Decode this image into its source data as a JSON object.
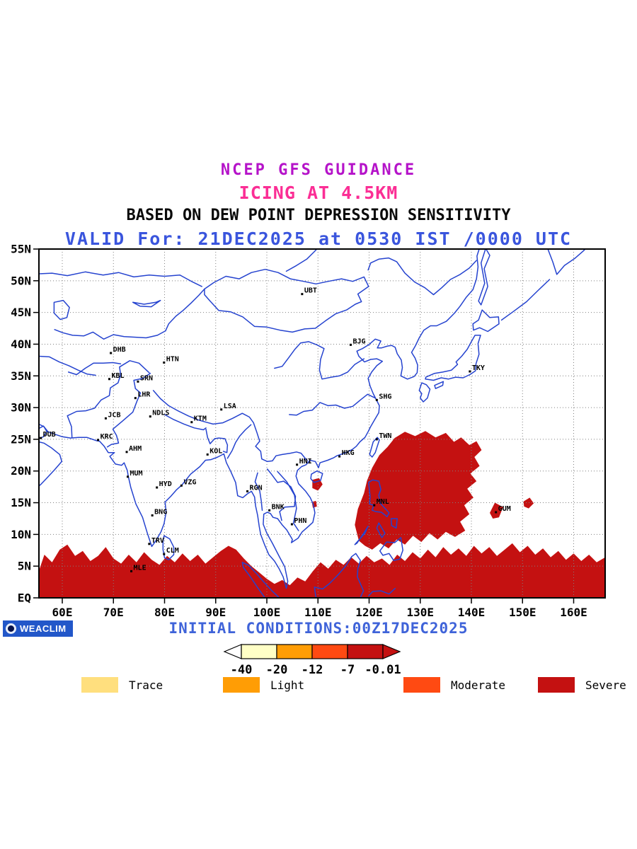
{
  "titles": {
    "line1": "NCEP GFS GUIDANCE",
    "line2": "ICING AT 4.5KM",
    "line3": "BASED ON DEW POINT DEPRESSION SENSITIVITY",
    "line4": "VALID For: 21DEC2025 at 0530 IST /0000 UTC"
  },
  "colors": {
    "title_model": "#b513c9",
    "title_product": "#fb2e95",
    "title_valid": "#3a55dd",
    "coast": "#2543cf",
    "grid": "#808080",
    "severe": "#c41111",
    "moderate": "#ff4a12",
    "light": "#ff9d05",
    "trace": "#ffdf7e",
    "initial_text": "#3f63d9",
    "logo_bg": "#2257c9"
  },
  "map": {
    "lat_labels": [
      "55N",
      "50N",
      "45N",
      "40N",
      "35N",
      "30N",
      "25N",
      "20N",
      "15N",
      "10N",
      "5N",
      "EQ"
    ],
    "lat_values": [
      55,
      50,
      45,
      40,
      35,
      30,
      25,
      20,
      15,
      10,
      5,
      0
    ],
    "lon_labels": [
      "60E",
      "70E",
      "80E",
      "90E",
      "100E",
      "110E",
      "120E",
      "130E",
      "140E",
      "150E",
      "160E"
    ],
    "lon_values": [
      60,
      70,
      80,
      90,
      100,
      110,
      120,
      130,
      140,
      150,
      160
    ],
    "stations": [
      {
        "code": "UBT",
        "lon": 106.9,
        "lat": 47.9
      },
      {
        "code": "BJG",
        "lon": 116.4,
        "lat": 39.9
      },
      {
        "code": "DHB",
        "lon": 69.5,
        "lat": 38.6
      },
      {
        "code": "HTN",
        "lon": 79.9,
        "lat": 37.1
      },
      {
        "code": "KBL",
        "lon": 69.2,
        "lat": 34.5
      },
      {
        "code": "SRN",
        "lon": 74.8,
        "lat": 34.1
      },
      {
        "code": "LHR",
        "lon": 74.3,
        "lat": 31.5
      },
      {
        "code": "SHG",
        "lon": 121.5,
        "lat": 31.2
      },
      {
        "code": "TKY",
        "lon": 139.7,
        "lat": 35.7
      },
      {
        "code": "JCB",
        "lon": 68.5,
        "lat": 28.3
      },
      {
        "code": "NDLS",
        "lon": 77.2,
        "lat": 28.6
      },
      {
        "code": "KTM",
        "lon": 85.3,
        "lat": 27.7
      },
      {
        "code": "LSA",
        "lon": 91.1,
        "lat": 29.7
      },
      {
        "code": "DUB",
        "lon": 55.8,
        "lat": 25.2
      },
      {
        "code": "KRC",
        "lon": 67.0,
        "lat": 24.9
      },
      {
        "code": "TWN",
        "lon": 121.5,
        "lat": 25.0
      },
      {
        "code": "AHM",
        "lon": 72.6,
        "lat": 23.0
      },
      {
        "code": "KOL",
        "lon": 88.4,
        "lat": 22.6
      },
      {
        "code": "HKG",
        "lon": 114.2,
        "lat": 22.3
      },
      {
        "code": "HNI",
        "lon": 105.9,
        "lat": 21.0
      },
      {
        "code": "MUM",
        "lon": 72.8,
        "lat": 19.1
      },
      {
        "code": "HYD",
        "lon": 78.5,
        "lat": 17.4
      },
      {
        "code": "VZG",
        "lon": 83.3,
        "lat": 17.7
      },
      {
        "code": "RGN",
        "lon": 96.2,
        "lat": 16.8
      },
      {
        "code": "BNK",
        "lon": 100.5,
        "lat": 13.8
      },
      {
        "code": "PHN",
        "lon": 104.9,
        "lat": 11.6
      },
      {
        "code": "MNL",
        "lon": 121.0,
        "lat": 14.6
      },
      {
        "code": "GUM",
        "lon": 144.8,
        "lat": 13.5
      },
      {
        "code": "BNG",
        "lon": 77.6,
        "lat": 13.0
      },
      {
        "code": "TRV",
        "lon": 77.0,
        "lat": 8.5
      },
      {
        "code": "CLM",
        "lon": 79.9,
        "lat": 6.9
      },
      {
        "code": "MLE",
        "lon": 73.5,
        "lat": 4.2
      }
    ]
  },
  "colorbar": {
    "tick_labels": [
      "-40",
      "-20",
      "-12",
      "-7",
      "-0.01"
    ],
    "segment_colors": [
      "#ffffc6",
      "#ff9d05",
      "#ff4a12",
      "#c41111"
    ],
    "arrow_left": "#ffffff",
    "arrow_right": "#c41111"
  },
  "legend": [
    {
      "label": "Trace",
      "color": "#ffdf7e"
    },
    {
      "label": "Light",
      "color": "#ff9d05"
    },
    {
      "label": "Moderate",
      "color": "#ff4a12"
    },
    {
      "label": "Severe",
      "color": "#c41111"
    }
  ],
  "footer": {
    "logo_text": "WEACLIM",
    "initial_conditions": "INITIAL CONDITIONS:00Z17DEC2025"
  }
}
